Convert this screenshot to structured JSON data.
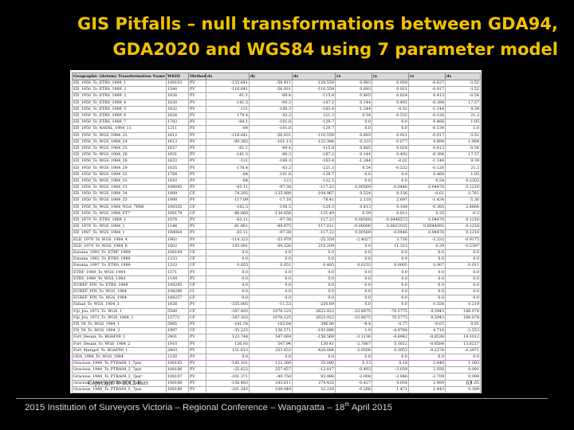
{
  "title": {
    "line1": "GIS Pitfalls – null transformations between GDA94,",
    "line2": "GDA2020 and WGS84 using 7 parameter model"
  },
  "table": {
    "headers": [
      "Geographic (datum) Transformation Name",
      "WKID",
      "Method",
      "dx",
      "dy",
      "dz",
      "rx",
      "ry",
      "rz",
      "ds"
    ],
    "highlight_index": 42,
    "rows": [
      [
        "ED_1950_To_ETRS_1989_1",
        "108103",
        "PV",
        "-135.641",
        "-56.911",
        "-120.559",
        "0.983",
        "0.928",
        "-0.627",
        "-3.52"
      ],
      [
        "ED_1950_To_ETRS_1989_2",
        "1586",
        "PV",
        "-116.641",
        "-56.931",
        "-110.559",
        "0.893",
        "0.921",
        "-0.917",
        "-3.52"
      ],
      [
        "ED_1950_To_ETRS_1989_3",
        "1626",
        "PV",
        "-81.1",
        "-89.4",
        "-115.8",
        "0.485",
        "0.024",
        "0.413",
        "-0.54"
      ],
      [
        "ED_1950_To_ETRS_1989_4",
        "1630",
        "PV",
        "-181.5",
        "-90.3",
        "-187.2",
        "0.144",
        "0.492",
        "-0.394",
        "17.57"
      ],
      [
        "ED_1950_To_ETRS_1989_5",
        "1632",
        "PV",
        "-131",
        "-100.3",
        "-163.4",
        "-1.244",
        "-0.02",
        "-1.144",
        "9.39"
      ],
      [
        "ED_1950_To_ETRS_1989_6",
        "1634",
        "PV",
        "178.4",
        "83.2",
        "221.3",
        "0.54",
        "-0.532",
        "-0.126",
        "21.2"
      ],
      [
        "ED_1950_To_ETRS_1989_7",
        "1783",
        "PV",
        "-84.1",
        "-101.8",
        "-129.7",
        "0.0",
        "0.0",
        "0.468",
        "1.05"
      ],
      [
        "ED_1950_To_NAVAL_1984_11",
        "1311",
        "PV",
        "-84",
        "-101.8",
        "-129.7",
        "0.0",
        "0.0",
        "-0.134",
        "1.0"
      ],
      [
        "ED_1950_To_WGS_1984_23",
        "1612",
        "PV",
        "-116.641",
        "-56.931",
        "-110.559",
        "0.893",
        "0.921",
        "-0.917",
        "-3.52"
      ],
      [
        "ED_1950_To_WGS_1984_24",
        "1613",
        "PV",
        "-90.365",
        "-101.13",
        "-123.384",
        "0.333",
        "0.077",
        "0.894",
        "1.994"
      ],
      [
        "ED_1950_To_WGS_1984_25",
        "1627",
        "PV",
        "-81.1",
        "-89.4",
        "-115.8",
        "0.485",
        "0.024",
        "0.413",
        "-0.54"
      ],
      [
        "ED_1950_To_WGS_1984_26",
        "1631",
        "PV",
        "-181.5",
        "-90.3",
        "-187.2",
        "0.144",
        "0.492",
        "-0.394",
        "17.57"
      ],
      [
        "ED_1950_To_WGS_1984_28",
        "1633",
        "PV",
        "-131",
        "-100.3",
        "-163.4",
        "-1.244",
        "-0.02",
        "-1.144",
        "9.39"
      ],
      [
        "ED_1950_To_WGS_1984_29",
        "1635",
        "PV",
        "-178.4",
        "-83.2",
        "-221.3",
        "0.54",
        "-0.532",
        "-0.126",
        "21.2"
      ],
      [
        "ED_1950_To_WGS_1984_32",
        "1784",
        "PV",
        "-84",
        "-101.8",
        "-129.7",
        "0.0",
        "0.0",
        "0.468",
        "1.05"
      ],
      [
        "ED_1950_To_WGS_1984_33",
        "1810",
        "PV",
        "-84",
        "-123",
        "-122.5",
        "0.0",
        "0.0",
        "0.54",
        "0.2203"
      ],
      [
        "ED_1950_To_WGS_1984_33",
        "108045",
        "PV",
        "-83.11",
        "-97.38",
        "-117.22",
        "0.00569",
        "-0.0446",
        "0.04476",
        "0.1218"
      ],
      [
        "ED_1950_To_WGS_1984_34",
        "1989",
        "CF",
        "-74.292",
        "-135.889",
        "-104.967",
        "0.524",
        "0.136",
        "-0.61",
        "-3.761"
      ],
      [
        "ED_1950_To_WGS_1984_35",
        "1998",
        "PV",
        "-117.09",
        "-17.16",
        "-78.41",
        "2.118",
        "2.697",
        "-1.434",
        "-5.38"
      ],
      [
        "ED_1950_To_WGS_1984_NGA_7PAR",
        "108335",
        "CF",
        "-102.5",
        "-106.5",
        "-129.3",
        "0.413",
        "0.184",
        "-0.385",
        "2.4664"
      ],
      [
        "ED_1950_To_WGS_1984_PT7",
        "108174",
        "CF",
        "-86.868",
        "-134.858",
        "-131.49",
        "0.59",
        "0.011",
        "0.35",
        "-0.2"
      ],
      [
        "ED_1979_To_ETRS_1989_1",
        "1078",
        "PV",
        "-83.11",
        "-97.38",
        "-117.22",
        "0.00569",
        "-0.0446573",
        "0.04476",
        "0.1218"
      ],
      [
        "ED_1979_To_WGS_1984_1",
        "1146",
        "PV",
        "-81.961",
        "-89.975",
        "-117.011",
        "-0.00000",
        "0.0021025",
        "0.0044092",
        "0.1218"
      ],
      [
        "ED_1987_To_WGS_1984_1",
        "108064",
        "PV",
        "-83.11",
        "-97.38",
        "-117.22",
        "0.00569",
        "-0.0446",
        "0.04476",
        "0.1218"
      ],
      [
        "ELD_1979_To_WGS_1984_4",
        "1902",
        "PV",
        "-114.323",
        "-53.978",
        "-25.359",
        "-2.4027",
        "3.736",
        "-3.332",
        "-0.9175"
      ],
      [
        "ELD_1979_To_WGS_1984_6",
        "1802",
        "PV",
        "183.001",
        "64.326",
        "210.209",
        "0.0",
        "11.313",
        "0.39",
        "-0.5397"
      ],
      [
        "Estonia_1992_To_ETRF_1989",
        "108194",
        "CF",
        "0.0",
        "0.0",
        "0.0",
        "0.0",
        "0.0",
        "0.0",
        "0.0"
      ],
      [
        "Estonia_1992_To_ETRS_1989",
        "1333",
        "CF",
        "0.0",
        "0.0",
        "0.0",
        "0.0",
        "0.0",
        "0.0",
        "0.0"
      ],
      [
        "Estonia_1997_To_ETRS_1989",
        "1333",
        "CF",
        "0.055",
        "0.051",
        "0.485",
        "0.0153",
        "0.0005",
        "0.007",
        "0.011"
      ],
      [
        "ETRF_1989_To_WGS_1984",
        "1571",
        "PV",
        "0.0",
        "0.0",
        "0.0",
        "0.0",
        "0.0",
        "0.0",
        "0.0"
      ],
      [
        "ETRS_1989_To_WGS_1984",
        "1149",
        "PV",
        "0.0",
        "0.0",
        "0.0",
        "0.0",
        "0.0",
        "0.0",
        "0.0"
      ],
      [
        "EUREF_FIN_To_ETRS_1989",
        "108295",
        "CF",
        "0.0",
        "0.0",
        "0.0",
        "0.0",
        "0.0",
        "0.0",
        "0.0"
      ],
      [
        "EUREF_FIN_To_WGS_1984",
        "108296",
        "CI",
        "0.0",
        "0.0",
        "0.0",
        "0.0",
        "0.0",
        "0.0",
        "0.0"
      ],
      [
        "EUREF_FIN_To_WGS_1984",
        "108257",
        "CF",
        "0.0",
        "0.0",
        "0.0",
        "0.0",
        "0.0",
        "0.0",
        "0.0"
      ],
      [
        "Fahud_To_WGS_1984_3",
        "1438",
        "PV",
        "-335.005",
        "-11.53",
        "-230.69",
        "0.0",
        "0.0",
        "0.554",
        "0.219"
      ],
      [
        "Fiji_Jou_1972_To_WGS_1",
        "5580",
        "CF",
        "-347.403",
        "1078.125",
        "2623.922",
        "-33.8875",
        "-70.5775",
        "9.3943",
        "186.074"
      ],
      [
        "Fiji_Jou_1972_To_WGS_1984_1",
        "15772",
        "CF",
        "-347.103",
        "1078.125",
        "2623.922",
        "-33.8875",
        "70.5775",
        "9.3943",
        "186.074"
      ],
      [
        "FD_58_To_WGS_1984_1",
        "5995",
        "PV",
        "-241.54",
        "-163.64",
        "396.06",
        "-9.4",
        "-0.77",
        "-0.07",
        "0.91"
      ],
      [
        "FD_58_To_WGS_1984_2",
        "1997",
        "CF",
        "-35.225",
        "136.571",
        "-193.898",
        "1.9",
        "-4.9764",
        "4.716",
        "-3.553"
      ],
      [
        "Fort_Desaix_To_RGAF09_1",
        "2401",
        "PV",
        "123.744",
        "547.069",
        "-158.569",
        "-3.1136",
        "-4.6942",
        "-8.8538",
        "14.1012"
      ],
      [
        "Fort_Desaix_To_WGS_1984_2",
        "1910",
        "PV",
        "126.93",
        "547.94",
        "130.41",
        "-2.7867",
        "5.1612",
        "-0.8584",
        "13.8227"
      ],
      [
        "Fort_Marigot_To_RGAF09_1",
        "2403",
        "PV",
        "151.613",
        "253.832",
        "-429.084",
        "-2.0506",
        "0.3053",
        "-0.2274",
        "-0.3971"
      ],
      [
        "GDA_1994_To_WGS_1984",
        "1150",
        "PV",
        "0.0",
        "0.0",
        "0.0",
        "0.0",
        "0.0",
        "0.0",
        "0.0"
      ],
      [
        "Gracious_1948_To_PTRA08_1_7par",
        "108185",
        "PV",
        "-185.101",
        "122.266",
        "35.090",
        "0.13",
        "8.18",
        "2.446",
        "1.093"
      ],
      [
        "Gracious_1948_To_PTRA08_2_7par",
        "108186",
        "PV",
        "-25.622",
        "257.457",
        "-12.817",
        "-0.493",
        "-3.039",
        "2.938",
        "0.091"
      ],
      [
        "Gracious_1948_To_PTRA08_3_7par",
        "108187",
        "PV",
        "-201.371",
        "-49.758",
        "93.988",
        "-2.008",
        "-3.946",
        "-3.709",
        "0.094"
      ],
      [
        "Gracious_1948_To_PTRA08_4_7par",
        "108188",
        "PV",
        "-156.483",
        "243.611",
        "274.432",
        "-0.427",
        "4.054",
        "2.489",
        "-1.65"
      ],
      [
        "Gracious_1948_To_PTRA08_5_7par",
        "108189",
        "PV",
        "-201.243",
        "109.049",
        "32.218",
        "-0.266",
        "1.471",
        "2.443",
        "0.399"
      ]
    ]
  },
  "copyright": "Copyright © 2012 Esri",
  "page_number": "63",
  "footer": {
    "prefix": "2015 Institution of Surveyors Victoria – Regional Conference – Wangaratta – 18",
    "sup": "th",
    "suffix": " April 2015"
  }
}
